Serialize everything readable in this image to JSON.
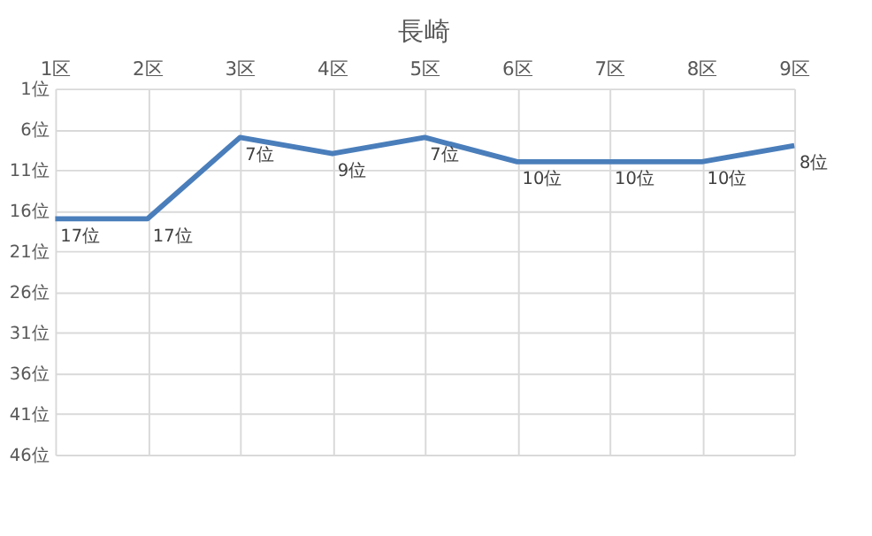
{
  "chart_data": {
    "type": "line",
    "title": "長崎",
    "categories": [
      "1区",
      "2区",
      "3区",
      "4区",
      "5区",
      "6区",
      "7区",
      "8区",
      "9区"
    ],
    "series": [
      {
        "color": "#4a7ebb",
        "values": [
          17,
          17,
          7,
          9,
          7,
          10,
          10,
          10,
          8
        ],
        "value_labels": [
          "17位",
          "17位",
          "7位",
          "9位",
          "7位",
          "10位",
          "10位",
          "10位",
          "8位"
        ]
      }
    ],
    "ylim": [
      46,
      1
    ],
    "yticks": [
      {
        "value": 1,
        "label": "1位"
      },
      {
        "value": 6,
        "label": "6位"
      },
      {
        "value": 11,
        "label": "11位"
      },
      {
        "value": 16,
        "label": "16位"
      },
      {
        "value": 21,
        "label": "21位"
      },
      {
        "value": 26,
        "label": "26位"
      },
      {
        "value": 31,
        "label": "31位"
      },
      {
        "value": 36,
        "label": "36位"
      },
      {
        "value": 41,
        "label": "41位"
      },
      {
        "value": 46,
        "label": "46位"
      }
    ],
    "grid": true,
    "marker": "none",
    "line_style": "solid"
  }
}
